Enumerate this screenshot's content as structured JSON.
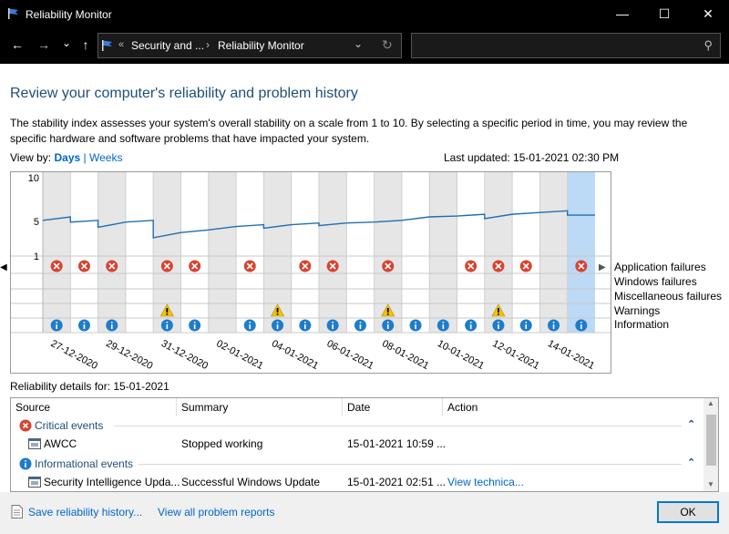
{
  "window": {
    "title": "Reliability Monitor",
    "minimize": "—",
    "maximize": "☐",
    "close": "✕"
  },
  "nav": {
    "back": "←",
    "forward": "→",
    "recent": "⌄",
    "up": "↑",
    "sep0": "«",
    "crumb1": "Security and ...",
    "sep1": "›",
    "crumb2": "Reliability Monitor",
    "dropdown": "⌄",
    "refresh": "↻",
    "search_icon": "⚲"
  },
  "page": {
    "title": "Review your computer's reliability and problem history",
    "description": "The stability index assesses your system's overall stability on a scale from 1 to 10. By selecting a specific period in time, you may review the specific hardware and software problems that have impacted your system.",
    "view_by_label": "View by:",
    "view_days": "Days",
    "view_sep": "|",
    "view_weeks": "Weeks",
    "last_updated": "Last updated: 15-01-2021 02:30 PM"
  },
  "chart_data": {
    "type": "line",
    "y_ticks": [
      "10",
      "5",
      "1"
    ],
    "ylim": [
      1,
      10
    ],
    "dates": [
      "27-12-2020",
      "28-12-2020",
      "29-12-2020",
      "30-12-2020",
      "31-12-2020",
      "01-01-2021",
      "02-01-2021",
      "03-01-2021",
      "04-01-2021",
      "05-01-2021",
      "06-01-2021",
      "07-01-2021",
      "08-01-2021",
      "09-01-2021",
      "10-01-2021",
      "11-01-2021",
      "12-01-2021",
      "13-01-2021",
      "14-01-2021",
      "15-01-2021"
    ],
    "x_tick_labels": [
      "27-12-2020",
      "",
      "29-12-2020",
      "",
      "31-12-2020",
      "",
      "02-01-2021",
      "",
      "04-01-2021",
      "",
      "06-01-2021",
      "",
      "08-01-2021",
      "",
      "10-01-2021",
      "",
      "12-01-2021",
      "",
      "14-01-2021",
      ""
    ],
    "stability_index": [
      5.3,
      4.9,
      4.3,
      4.9,
      3.1,
      3.7,
      4.0,
      4.4,
      4.2,
      4.6,
      4.5,
      4.8,
      4.9,
      5.1,
      5.5,
      5.6,
      5.3,
      5.8,
      6.0,
      5.7
    ],
    "selected_index": 19,
    "rows": [
      "Application failures",
      "Windows failures",
      "Miscellaneous failures",
      "Warnings",
      "Information"
    ],
    "application_failures": [
      1,
      1,
      1,
      0,
      1,
      1,
      0,
      1,
      0,
      1,
      1,
      0,
      1,
      0,
      0,
      1,
      1,
      1,
      0,
      1
    ],
    "warnings": [
      0,
      0,
      0,
      0,
      1,
      0,
      0,
      0,
      1,
      0,
      0,
      0,
      1,
      0,
      0,
      0,
      1,
      0,
      0,
      0
    ],
    "information": [
      1,
      1,
      1,
      0,
      1,
      1,
      0,
      1,
      1,
      1,
      1,
      1,
      1,
      1,
      1,
      1,
      1,
      1,
      1,
      1
    ],
    "colors": {
      "line": "#1f6fb2",
      "weekend": "#e6e6e6",
      "selected": "#bcd9f5",
      "error": "#d9412f",
      "warning": "#f5c400",
      "info": "#1e7ccc"
    }
  },
  "legend": {
    "application_failures": "Application failures",
    "windows_failures": "Windows failures",
    "misc_failures": "Miscellaneous failures",
    "warnings": "Warnings",
    "information": "Information"
  },
  "details": {
    "title": "Reliability details for: 15-01-2021",
    "columns": {
      "source": "Source",
      "summary": "Summary",
      "date": "Date",
      "action": "Action"
    },
    "critical_label": "Critical events",
    "critical_row": {
      "source": "AWCC",
      "summary": "Stopped working",
      "date": "15-01-2021 10:59 ...",
      "action": ""
    },
    "info_label": "Informational events",
    "info_row": {
      "source": "Security Intelligence Upda...",
      "summary": "Successful Windows Update",
      "date": "15-01-2021 02:51 ...",
      "action": "View technica..."
    },
    "collapse_glyph": "⌃"
  },
  "footer": {
    "save_history": "Save reliability history...",
    "view_all": "View all problem reports",
    "ok": "OK"
  }
}
